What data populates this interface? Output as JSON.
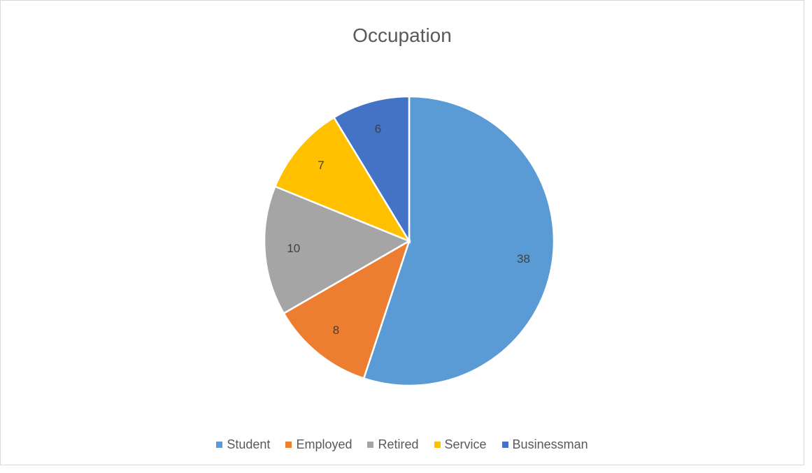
{
  "chart_data": {
    "type": "pie",
    "title": "Occupation",
    "categories": [
      "Student",
      "Employed",
      "Retired",
      "Service",
      "Businessman"
    ],
    "values": [
      38,
      8,
      10,
      7,
      6
    ],
    "colors": [
      "#5b9bd5",
      "#ed7d31",
      "#a5a5a5",
      "#ffc000",
      "#4472c4"
    ],
    "legend": "bottom"
  }
}
